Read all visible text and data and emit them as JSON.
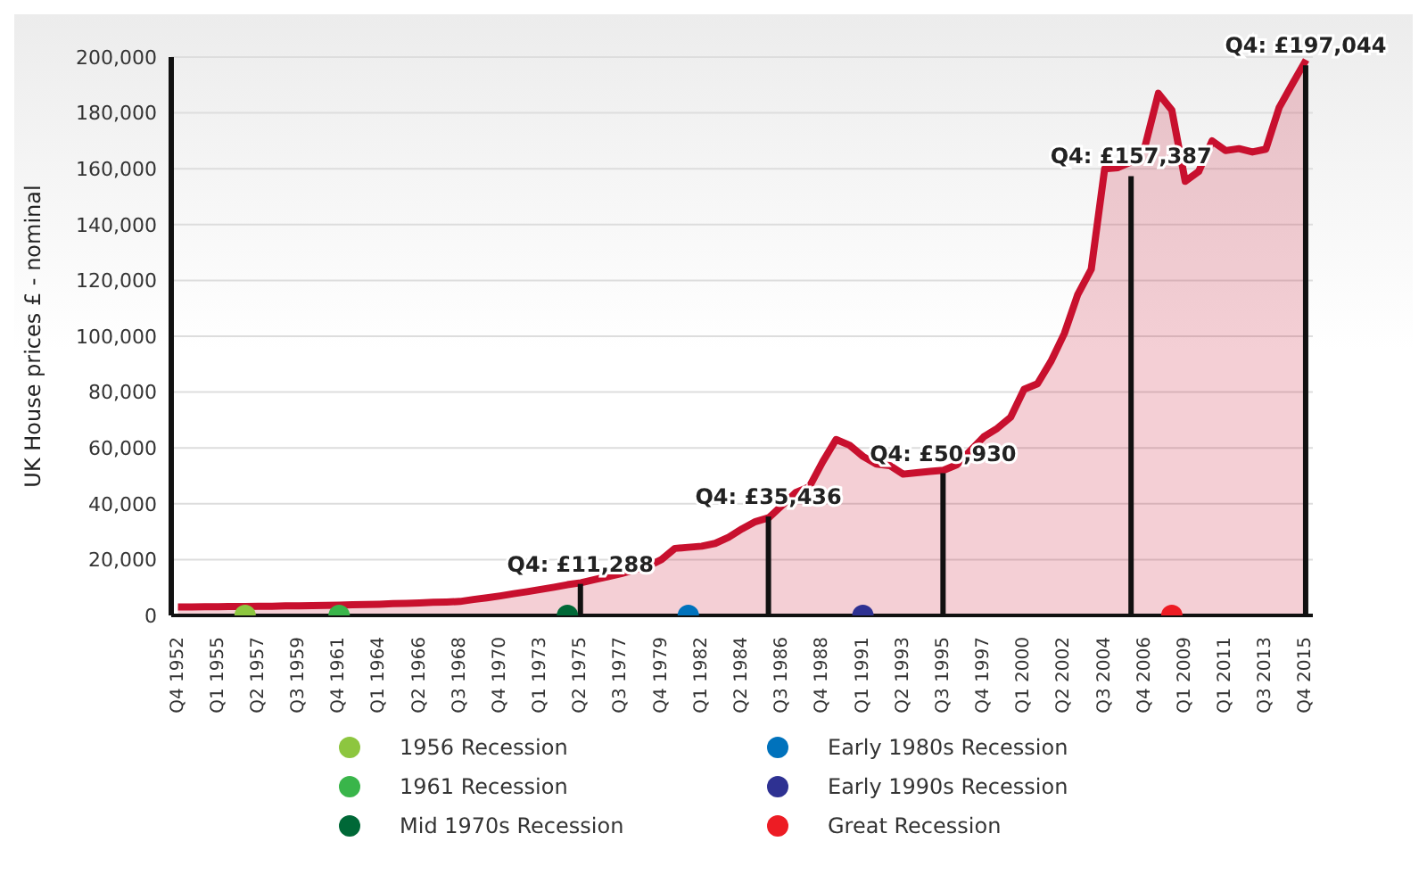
{
  "chart_data": {
    "type": "area",
    "ylabel": "UK House prices £ - nominal",
    "categories": [
      "Q4 1952",
      null,
      null,
      "Q1 1955",
      null,
      null,
      "Q2 1957",
      null,
      null,
      "Q3 1959",
      null,
      null,
      "Q4 1961",
      null,
      null,
      "Q1 1964",
      null,
      null,
      "Q2 1966",
      null,
      null,
      "Q3 1968",
      null,
      null,
      "Q4 1970",
      null,
      null,
      "Q1 1973",
      null,
      null,
      "Q2 1975",
      null,
      null,
      "Q3 1977",
      null,
      null,
      "Q4 1979",
      null,
      null,
      "Q1 1982",
      null,
      null,
      "Q2 1984",
      null,
      null,
      "Q3 1986",
      null,
      null,
      "Q4 1988",
      null,
      null,
      "Q1 1991",
      null,
      null,
      "Q2 1993",
      null,
      null,
      "Q3 1995",
      null,
      null,
      "Q4 1997",
      null,
      null,
      "Q1 2000",
      null,
      null,
      "Q2 2002",
      null,
      null,
      "Q3 2004",
      null,
      null,
      "Q4 2006",
      null,
      null,
      "Q1 2009",
      null,
      null,
      "Q1 2011",
      null,
      null,
      "Q3 2013",
      null,
      null,
      "Q4 2015"
    ],
    "ylim": [
      0,
      200000
    ],
    "yticks": [
      0,
      {
        "value": 20000,
        "label": "20,000"
      },
      {
        "value": 40000,
        "label": "40,000"
      },
      {
        "value": 60000,
        "label": "60,000"
      },
      {
        "value": 80000,
        "label": "80,000"
      },
      {
        "value": 100000,
        "label": "100,000"
      },
      {
        "value": 120000,
        "label": "120,000"
      },
      {
        "value": 140000,
        "label": "140,000"
      },
      {
        "value": 160000,
        "label": "160,000"
      },
      {
        "value": 180000,
        "label": "180,000"
      },
      {
        "value": 200000,
        "label": "200,000"
      }
    ],
    "grid": "y",
    "legend": "bottom",
    "series": [
      {
        "color": "#c8102e",
        "values": [
          3000,
          3000,
          3100,
          3100,
          3200,
          3200,
          3300,
          3300,
          3400,
          3400,
          3500,
          3600,
          3700,
          3800,
          3900,
          4000,
          4200,
          4300,
          4500,
          4700,
          4800,
          5000,
          5700,
          6300,
          7000,
          7800,
          8500,
          9300,
          10100,
          11000,
          11700,
          12800,
          13900,
          15000,
          16300,
          17600,
          20000,
          24000,
          24400,
          24800,
          25800,
          28000,
          31000,
          33600,
          35000,
          39500,
          44000,
          46000,
          55000,
          63000,
          61000,
          57000,
          54200,
          53700,
          50600,
          51100,
          51600,
          52000,
          54000,
          59000,
          64000,
          67000,
          71000,
          81000,
          83000,
          91000,
          101000,
          115000,
          124000,
          160000,
          160400,
          162500,
          168000,
          187000,
          181000,
          155500,
          159000,
          170000,
          166500,
          167200,
          166000,
          167000,
          182000,
          190600,
          199000
        ]
      },
      {
        "type": "bar",
        "color": "#111111",
        "values": [
          null,
          null,
          null,
          null,
          null,
          null,
          null,
          null,
          null,
          null,
          null,
          null,
          null,
          null,
          null,
          null,
          null,
          null,
          null,
          null,
          null,
          null,
          null,
          null,
          null,
          null,
          null,
          null,
          null,
          null,
          11288,
          null,
          null,
          null,
          null,
          null,
          null,
          null,
          null,
          null,
          null,
          null,
          null,
          null,
          35436,
          null,
          null,
          null,
          null,
          null,
          null,
          null,
          null,
          null,
          null,
          null,
          null,
          50930,
          null,
          null,
          null,
          null,
          null,
          null,
          null,
          null,
          null,
          null,
          null,
          null,
          null,
          157387,
          null,
          null,
          null,
          null,
          null,
          null,
          null,
          null,
          null,
          null,
          null,
          null,
          197044
        ],
        "value_labels": [
          null,
          null,
          null,
          null,
          null,
          null,
          null,
          null,
          null,
          null,
          null,
          null,
          null,
          null,
          null,
          null,
          null,
          null,
          null,
          null,
          null,
          null,
          null,
          null,
          null,
          null,
          null,
          null,
          null,
          null,
          "Q4: £11,288",
          null,
          null,
          null,
          null,
          null,
          null,
          null,
          null,
          null,
          null,
          null,
          null,
          null,
          "Q4: £35,436",
          null,
          null,
          null,
          null,
          null,
          null,
          null,
          null,
          null,
          null,
          null,
          null,
          "Q4: £50,930",
          null,
          null,
          null,
          null,
          null,
          null,
          null,
          null,
          null,
          null,
          null,
          null,
          null,
          "Q4: £157,387",
          null,
          null,
          null,
          null,
          null,
          null,
          null,
          null,
          null,
          null,
          null,
          null,
          "Q4: £197,044"
        ]
      },
      {
        "type": "scatter",
        "name": "1956 Recession",
        "color": "#8dc63f",
        "values": [
          null,
          null,
          null,
          null,
          null,
          0,
          null,
          null,
          null,
          null,
          null,
          null,
          null,
          null,
          null,
          null,
          null,
          null,
          null,
          null,
          null,
          null,
          null,
          null,
          null,
          null,
          null,
          null,
          null,
          null,
          null,
          null,
          null,
          null,
          null,
          null,
          null,
          null,
          null,
          null,
          null,
          null,
          null,
          null,
          null,
          null,
          null,
          null,
          null,
          null,
          null,
          null,
          null,
          null,
          null,
          null,
          null,
          null,
          null,
          null,
          null,
          null,
          null,
          null,
          null,
          null,
          null,
          null,
          null,
          null,
          null,
          null,
          null,
          null,
          null,
          null,
          null,
          null,
          null,
          null,
          null,
          null,
          null,
          null,
          null
        ]
      },
      {
        "type": "scatter",
        "name": "1961 Recession",
        "color": "#39b54a",
        "values": [
          null,
          null,
          null,
          null,
          null,
          null,
          null,
          null,
          null,
          null,
          null,
          null,
          0,
          null,
          null,
          null,
          null,
          null,
          null,
          null,
          null,
          null,
          null,
          null,
          null,
          null,
          null,
          null,
          null,
          null,
          null,
          null,
          null,
          null,
          null,
          null,
          null,
          null,
          null,
          null,
          null,
          null,
          null,
          null,
          null,
          null,
          null,
          null,
          null,
          null,
          null,
          null,
          null,
          null,
          null,
          null,
          null,
          null,
          null,
          null,
          null,
          null,
          null,
          null,
          null,
          null,
          null,
          null,
          null,
          null,
          null,
          null,
          null,
          null,
          null,
          null,
          null,
          null,
          null,
          null,
          null,
          null,
          null,
          null,
          null
        ]
      },
      {
        "type": "scatter",
        "name": "Mid 1970s Recession",
        "color": "#006837",
        "values": [
          null,
          null,
          null,
          null,
          null,
          null,
          null,
          null,
          null,
          null,
          null,
          null,
          null,
          null,
          null,
          null,
          null,
          null,
          null,
          null,
          null,
          null,
          null,
          null,
          null,
          null,
          null,
          null,
          null,
          0,
          null,
          null,
          null,
          null,
          null,
          null,
          null,
          null,
          null,
          null,
          null,
          null,
          null,
          null,
          null,
          null,
          null,
          null,
          null,
          null,
          null,
          null,
          null,
          null,
          null,
          null,
          null,
          null,
          null,
          null,
          null,
          null,
          null,
          null,
          null,
          null,
          null,
          null,
          null,
          null,
          null,
          null,
          null,
          null,
          null,
          null,
          null,
          null,
          null,
          null,
          null,
          null,
          null,
          null,
          null
        ]
      },
      {
        "type": "scatter",
        "name": "Early 1980s Recession",
        "color": "#0072bc",
        "values": [
          null,
          null,
          null,
          null,
          null,
          null,
          null,
          null,
          null,
          null,
          null,
          null,
          null,
          null,
          null,
          null,
          null,
          null,
          null,
          null,
          null,
          null,
          null,
          null,
          null,
          null,
          null,
          null,
          null,
          null,
          null,
          null,
          null,
          null,
          null,
          null,
          null,
          null,
          0,
          null,
          null,
          null,
          null,
          null,
          null,
          null,
          null,
          null,
          null,
          null,
          null,
          null,
          null,
          null,
          null,
          null,
          null,
          null,
          null,
          null,
          null,
          null,
          null,
          null,
          null,
          null,
          null,
          null,
          null,
          null,
          null,
          null,
          null,
          null,
          null,
          null,
          null,
          null,
          null,
          null,
          null,
          null,
          null,
          null,
          null
        ]
      },
      {
        "type": "scatter",
        "name": "Early 1990s Recession",
        "color": "#2e3192",
        "values": [
          null,
          null,
          null,
          null,
          null,
          null,
          null,
          null,
          null,
          null,
          null,
          null,
          null,
          null,
          null,
          null,
          null,
          null,
          null,
          null,
          null,
          null,
          null,
          null,
          null,
          null,
          null,
          null,
          null,
          null,
          null,
          null,
          null,
          null,
          null,
          null,
          null,
          null,
          null,
          null,
          null,
          null,
          null,
          null,
          null,
          null,
          null,
          null,
          null,
          null,
          null,
          0,
          null,
          null,
          null,
          null,
          null,
          null,
          null,
          null,
          null,
          null,
          null,
          null,
          null,
          null,
          null,
          null,
          null,
          null,
          null,
          null,
          null,
          null,
          null,
          null,
          null,
          null,
          null,
          null,
          null,
          null,
          null,
          null,
          null
        ]
      },
      {
        "type": "scatter",
        "name": "Great Recession",
        "color": "#ed1c24",
        "values": [
          null,
          null,
          null,
          null,
          null,
          null,
          null,
          null,
          null,
          null,
          null,
          null,
          null,
          null,
          null,
          null,
          null,
          null,
          null,
          null,
          null,
          null,
          null,
          null,
          null,
          null,
          null,
          null,
          null,
          null,
          null,
          null,
          null,
          null,
          null,
          null,
          null,
          null,
          null,
          null,
          null,
          null,
          null,
          null,
          null,
          null,
          null,
          null,
          null,
          null,
          null,
          null,
          null,
          null,
          null,
          null,
          null,
          null,
          null,
          null,
          null,
          null,
          null,
          null,
          null,
          null,
          null,
          null,
          null,
          null,
          null,
          null,
          null,
          null,
          0,
          null,
          null,
          null,
          null,
          null,
          null,
          null,
          null,
          null,
          null
        ]
      }
    ]
  }
}
